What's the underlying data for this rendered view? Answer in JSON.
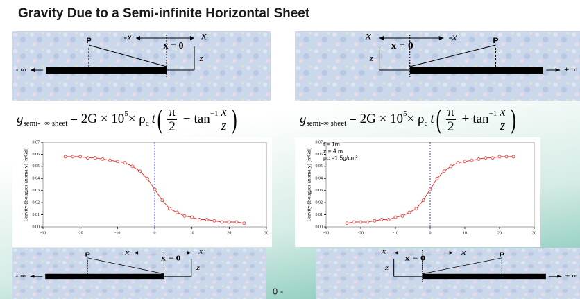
{
  "title": "Gravity Due to a Semi-infinite Horizontal Sheet",
  "footer": "0 -",
  "diagrams": [
    {
      "p": "P",
      "neg_x": "-x",
      "pos_x": "x",
      "origin": "x = 0",
      "z": "z",
      "infinity": "- ∞"
    },
    {
      "p": "P",
      "neg_x": "-x",
      "pos_x": "x",
      "origin": "x = 0",
      "z": "z",
      "infinity": "+ ∞"
    },
    {
      "p": "P",
      "neg_x": "-x",
      "pos_x": "x",
      "origin": "x = 0",
      "z": "z",
      "infinity": "- ∞"
    },
    {
      "p": "P",
      "neg_x": "-x",
      "pos_x": "x",
      "origin": "x = 0",
      "z": "z",
      "infinity": "+ ∞"
    }
  ],
  "formulas": [
    {
      "g": "g",
      "sub": "semi-−∞ sheet",
      "eq": "= 2G × 10",
      "exp": "5",
      "rho": "× ρ",
      "rho_sub": "c",
      "t": "t",
      "num": "π",
      "den": "2",
      "op": "−",
      "fn": "tan",
      "fn_exp": "−1",
      "x": "x",
      "z": "z"
    },
    {
      "g": "g",
      "sub": "semi-∞ sheet",
      "eq": "= 2G × 10",
      "exp": "5",
      "rho": "× ρ",
      "rho_sub": "c",
      "t": "t",
      "num": "π",
      "den": "2",
      "op": "+",
      "fn": "tan",
      "fn_exp": "−1",
      "x": "x",
      "z": "z"
    }
  ],
  "chart_data": [
    {
      "type": "line",
      "y_label": "Gravity (Bouguer anomaly) (mGal)",
      "x": [
        -24,
        -22,
        -20,
        -18,
        -16,
        -14,
        -12,
        -10,
        -8,
        -6,
        -4,
        -2,
        0,
        2,
        4,
        6,
        8,
        10,
        12,
        14,
        16,
        18,
        20,
        22,
        24
      ],
      "series": [
        {
          "color": "#e8312f",
          "values": [
            0.058,
            0.058,
            0.058,
            0.057,
            0.057,
            0.056,
            0.055,
            0.054,
            0.053,
            0.05,
            0.046,
            0.04,
            0.031,
            0.022,
            0.015,
            0.012,
            0.009,
            0.008,
            0.006,
            0.006,
            0.005,
            0.004,
            0.004,
            0.004,
            0.003
          ]
        }
      ],
      "xlim": [
        -30,
        30
      ],
      "xticks": [
        -30,
        -20,
        -10,
        0,
        10,
        20,
        30
      ],
      "ylim": [
        0,
        0.07
      ],
      "yticks": [
        {
          "value": 0,
          "label": "0.00"
        },
        0.01,
        0.02,
        0.03,
        0.04,
        0.05,
        0.06,
        0.07
      ],
      "vline": 0,
      "grid": false
    },
    {
      "type": "line",
      "y_label": "Gravity (Bouguer anomaly) (mGal)",
      "annotations": [
        "t = 1m",
        "z = 4 m",
        "ρc =1.5g/cm³"
      ],
      "x": [
        -24,
        -22,
        -20,
        -18,
        -16,
        -14,
        -12,
        -10,
        -8,
        -6,
        -4,
        -2,
        0,
        2,
        4,
        6,
        8,
        10,
        12,
        14,
        16,
        18,
        20,
        22,
        24
      ],
      "series": [
        {
          "color": "#e8312f",
          "values": [
            0.003,
            0.004,
            0.004,
            0.004,
            0.005,
            0.006,
            0.006,
            0.008,
            0.009,
            0.012,
            0.015,
            0.022,
            0.031,
            0.04,
            0.046,
            0.05,
            0.053,
            0.054,
            0.055,
            0.056,
            0.057,
            0.057,
            0.058,
            0.058,
            0.058
          ]
        }
      ],
      "xlim": [
        -30,
        30
      ],
      "xticks": [
        -30,
        -20,
        -10,
        0,
        10,
        20,
        30
      ],
      "ylim": [
        0,
        0.07
      ],
      "yticks": [
        {
          "value": 0,
          "label": "0.00"
        },
        0.01,
        0.02,
        0.03,
        0.04,
        0.05,
        0.06,
        0.07
      ],
      "vline": 0,
      "grid": false
    }
  ]
}
